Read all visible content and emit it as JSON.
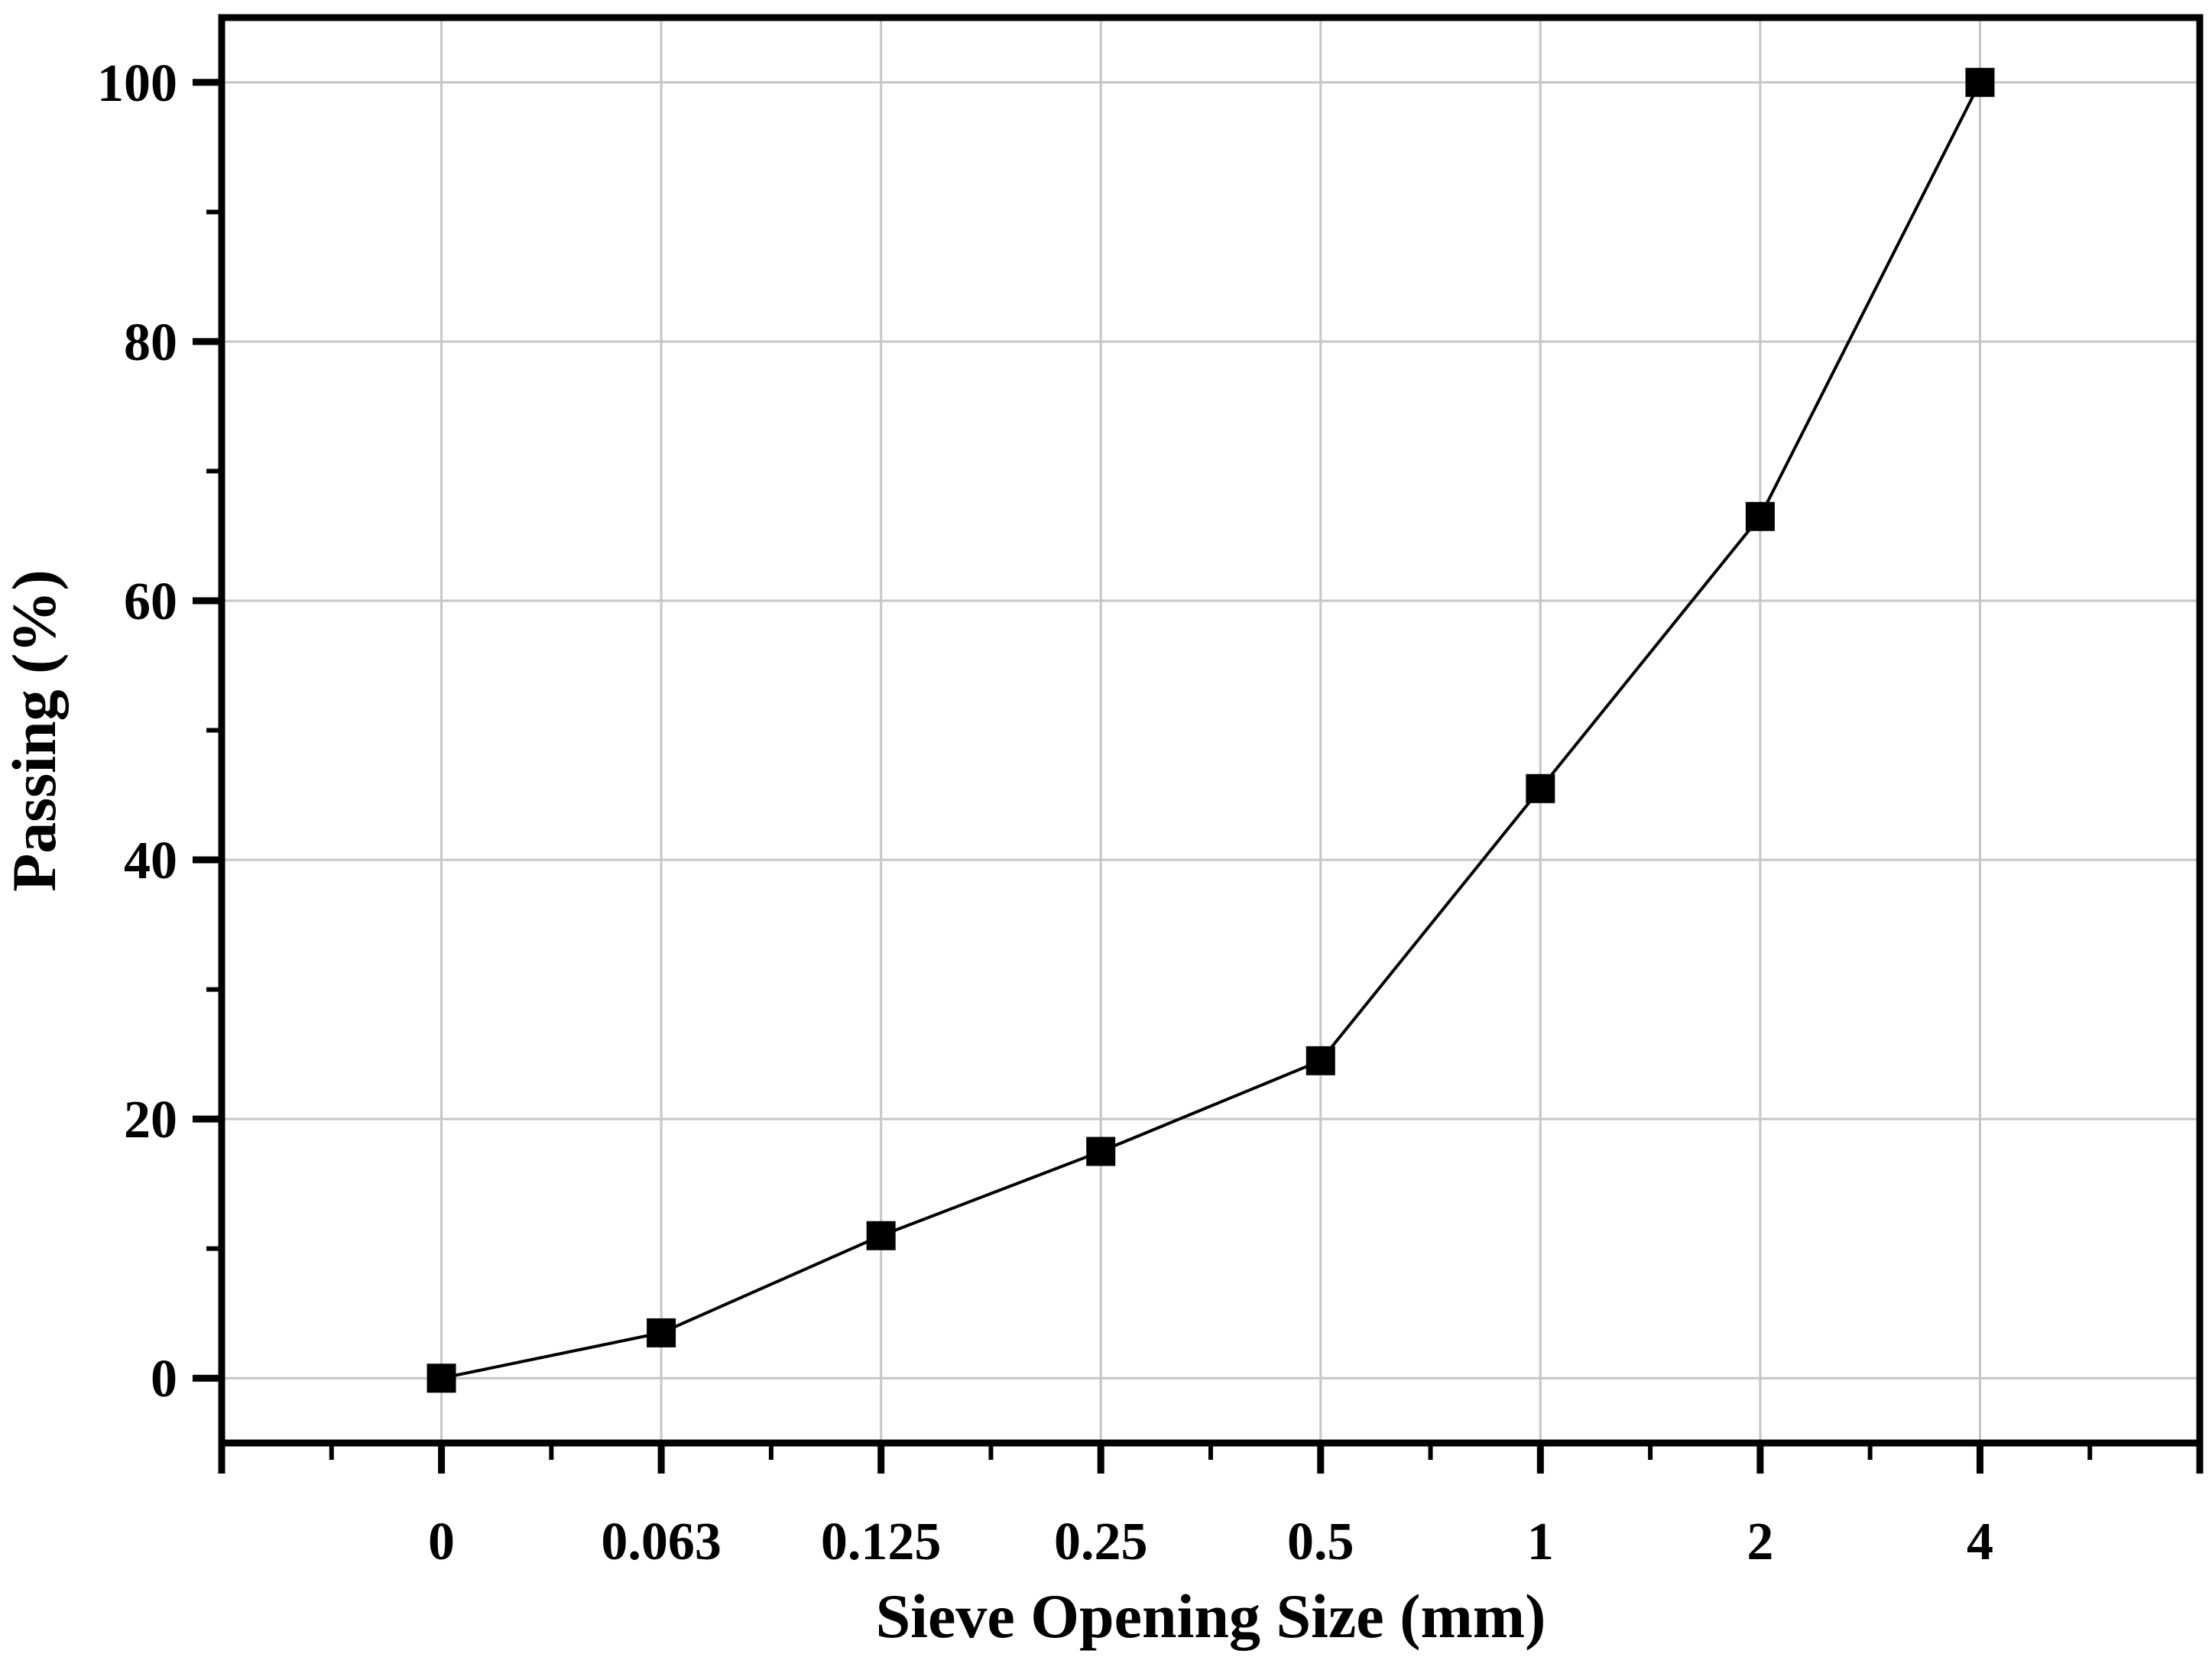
{
  "chart_data": {
    "type": "line",
    "title": "",
    "xlabel": "Sieve Opening Size (mm)",
    "ylabel": "Passing (%)",
    "categories": [
      "0",
      "0.063",
      "0.125",
      "0.25",
      "0.5",
      "1",
      "2",
      "4"
    ],
    "series": [
      {
        "name": "Passing",
        "marker": "square",
        "values": [
          0,
          3.5,
          11,
          17.5,
          24.5,
          45.5,
          66.5,
          100
        ]
      }
    ],
    "y_ticks": [
      0,
      20,
      40,
      60,
      80,
      100
    ],
    "y_minor_ticks": [
      10,
      30,
      50,
      70,
      90
    ],
    "ylim": [
      -5,
      105
    ],
    "x_slot_count": 9,
    "grid": "major-both",
    "legend_position": "none",
    "colors": {
      "background": "#ffffff",
      "line": "#000000",
      "marker": "#000000",
      "grid": "#c6c6c6",
      "axis": "#000000",
      "text": "#000000"
    }
  }
}
